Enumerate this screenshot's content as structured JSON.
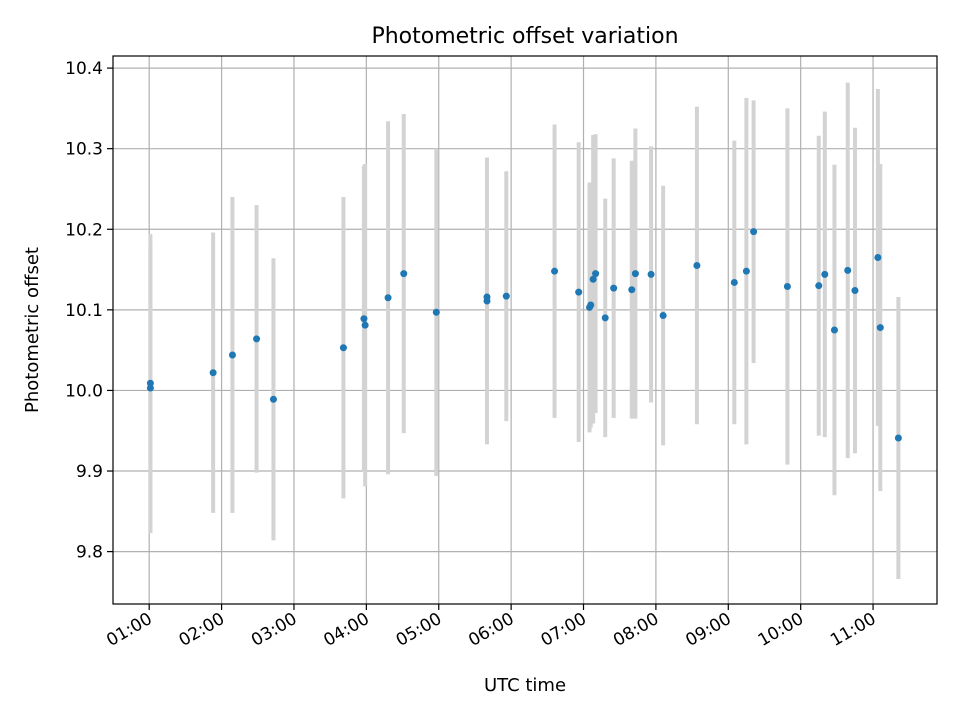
{
  "chart_data": {
    "type": "scatter",
    "title": "Photometric offset variation",
    "xlabel": "UTC time",
    "ylabel": "Photometric offset",
    "xlim": [
      "00:30",
      "11:53"
    ],
    "ylim": [
      9.735,
      10.415
    ],
    "grid": true,
    "x_ticks": [
      "01:00",
      "02:00",
      "03:00",
      "04:00",
      "05:00",
      "06:00",
      "07:00",
      "08:00",
      "09:00",
      "10:00",
      "11:00"
    ],
    "y_ticks": [
      9.8,
      9.9,
      10.0,
      10.1,
      10.2,
      10.3,
      10.4
    ],
    "series": [
      {
        "marker_color": "#1f77b4",
        "errorbar_color": "#d3d3d3",
        "points": [
          {
            "x": "01:01",
            "y": 10.009,
            "err": 0.185
          },
          {
            "x": "01:01",
            "y": 10.003,
            "err": 0.18
          },
          {
            "x": "01:53",
            "y": 10.022,
            "err": 0.174
          },
          {
            "x": "02:09",
            "y": 10.044,
            "err": 0.196
          },
          {
            "x": "02:29",
            "y": 10.064,
            "err": 0.166
          },
          {
            "x": "02:43",
            "y": 9.989,
            "err": 0.175
          },
          {
            "x": "03:41",
            "y": 10.053,
            "err": 0.187
          },
          {
            "x": "03:58",
            "y": 10.089,
            "err": 0.19
          },
          {
            "x": "03:59",
            "y": 10.081,
            "err": 0.2
          },
          {
            "x": "04:18",
            "y": 10.115,
            "err": 0.219
          },
          {
            "x": "04:31",
            "y": 10.145,
            "err": 0.198
          },
          {
            "x": "04:58",
            "y": 10.097,
            "err": 0.203
          },
          {
            "x": "05:40",
            "y": 10.116,
            "err": 0.173
          },
          {
            "x": "05:40",
            "y": 10.111,
            "err": 0.178
          },
          {
            "x": "05:56",
            "y": 10.117,
            "err": 0.155
          },
          {
            "x": "06:36",
            "y": 10.148,
            "err": 0.182
          },
          {
            "x": "06:56",
            "y": 10.122,
            "err": 0.186
          },
          {
            "x": "07:05",
            "y": 10.103,
            "err": 0.155
          },
          {
            "x": "07:06",
            "y": 10.106,
            "err": 0.152
          },
          {
            "x": "07:08",
            "y": 10.138,
            "err": 0.179
          },
          {
            "x": "07:10",
            "y": 10.145,
            "err": 0.173
          },
          {
            "x": "07:18",
            "y": 10.09,
            "err": 0.148
          },
          {
            "x": "07:25",
            "y": 10.127,
            "err": 0.161
          },
          {
            "x": "07:40",
            "y": 10.125,
            "err": 0.16
          },
          {
            "x": "07:43",
            "y": 10.145,
            "err": 0.18
          },
          {
            "x": "07:56",
            "y": 10.144,
            "err": 0.159
          },
          {
            "x": "08:06",
            "y": 10.093,
            "err": 0.161
          },
          {
            "x": "08:34",
            "y": 10.155,
            "err": 0.197
          },
          {
            "x": "09:05",
            "y": 10.134,
            "err": 0.176
          },
          {
            "x": "09:15",
            "y": 10.148,
            "err": 0.215
          },
          {
            "x": "09:21",
            "y": 10.197,
            "err": 0.163
          },
          {
            "x": "09:49",
            "y": 10.129,
            "err": 0.221
          },
          {
            "x": "10:15",
            "y": 10.13,
            "err": 0.186
          },
          {
            "x": "10:20",
            "y": 10.144,
            "err": 0.202
          },
          {
            "x": "10:28",
            "y": 10.075,
            "err": 0.205
          },
          {
            "x": "10:39",
            "y": 10.149,
            "err": 0.233
          },
          {
            "x": "10:45",
            "y": 10.124,
            "err": 0.202
          },
          {
            "x": "11:04",
            "y": 10.165,
            "err": 0.209
          },
          {
            "x": "11:06",
            "y": 10.078,
            "err": 0.203
          },
          {
            "x": "11:21",
            "y": 9.941,
            "err": 0.175
          }
        ]
      }
    ]
  }
}
